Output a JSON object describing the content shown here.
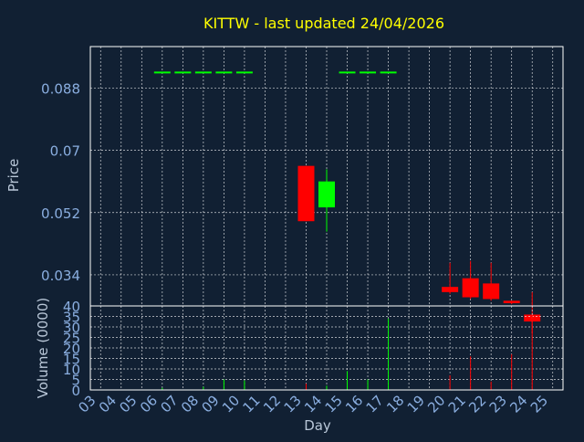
{
  "title": "KITTW - last updated 24/04/2026",
  "colors": {
    "background": "#112033",
    "frame": "#ffffff",
    "grid": "#ffffff",
    "title": "#ffff00",
    "axis_text": "#8aaee0",
    "label_text": "#b9c7d8",
    "up": "#00ff00",
    "down": "#ff0000",
    "flat": "#00ff00"
  },
  "chart_data": [
    {
      "type": "candlestick",
      "title": "KITTW - last updated 24/04/2026",
      "ylabel": "Price",
      "ylim": [
        0.025,
        0.1
      ],
      "y_ticks": [
        0.034,
        0.052,
        0.07,
        0.088
      ],
      "y_tick_labels": [
        "0.034",
        "0.052",
        "0.07",
        "0.088"
      ],
      "x_ticks": [
        "03",
        "04",
        "05",
        "06",
        "07",
        "08",
        "09",
        "10",
        "11",
        "12",
        "13",
        "14",
        "15",
        "16",
        "17",
        "18",
        "19",
        "20",
        "21",
        "22",
        "23",
        "24",
        "25"
      ],
      "grid": true,
      "candles": [
        {
          "day": "06",
          "open": 0.0925,
          "high": 0.0925,
          "low": 0.0925,
          "close": 0.0925
        },
        {
          "day": "07",
          "open": 0.0925,
          "high": 0.0925,
          "low": 0.0925,
          "close": 0.0925
        },
        {
          "day": "08",
          "open": 0.0925,
          "high": 0.0925,
          "low": 0.0925,
          "close": 0.0925
        },
        {
          "day": "09",
          "open": 0.0925,
          "high": 0.0925,
          "low": 0.0925,
          "close": 0.0925
        },
        {
          "day": "10",
          "open": 0.0925,
          "high": 0.0925,
          "low": 0.0925,
          "close": 0.0925
        },
        {
          "day": "13",
          "open": 0.0655,
          "high": 0.0655,
          "low": 0.0495,
          "close": 0.0495
        },
        {
          "day": "14",
          "open": 0.0535,
          "high": 0.0645,
          "low": 0.0465,
          "close": 0.061
        },
        {
          "day": "15",
          "open": 0.0925,
          "high": 0.0925,
          "low": 0.0925,
          "close": 0.0925
        },
        {
          "day": "16",
          "open": 0.0925,
          "high": 0.0925,
          "low": 0.0925,
          "close": 0.0925
        },
        {
          "day": "17",
          "open": 0.0925,
          "high": 0.0925,
          "low": 0.0925,
          "close": 0.0925
        },
        {
          "day": "20",
          "open": 0.0305,
          "high": 0.0375,
          "low": 0.0285,
          "close": 0.029
        },
        {
          "day": "21",
          "open": 0.033,
          "high": 0.038,
          "low": 0.027,
          "close": 0.0275
        },
        {
          "day": "22",
          "open": 0.0315,
          "high": 0.0375,
          "low": 0.0265,
          "close": 0.027
        },
        {
          "day": "23",
          "open": 0.0265,
          "high": 0.0265,
          "low": 0.0255,
          "close": 0.0258
        },
        {
          "day": "24",
          "open": 0.0225,
          "high": 0.029,
          "low": 0.017,
          "close": 0.0205
        }
      ]
    },
    {
      "type": "bar",
      "ylabel": "Volume (0000)",
      "xlabel": "Day",
      "ylim": [
        0,
        40
      ],
      "y_ticks": [
        0,
        5,
        10,
        15,
        20,
        25,
        30,
        35,
        40
      ],
      "y_tick_labels": [
        "0",
        "5",
        "10",
        "15",
        "20",
        "25",
        "30",
        "35",
        "40"
      ],
      "x_ticks": [
        "03",
        "04",
        "05",
        "06",
        "07",
        "08",
        "09",
        "10",
        "11",
        "12",
        "13",
        "14",
        "15",
        "16",
        "17",
        "18",
        "19",
        "20",
        "21",
        "22",
        "23",
        "24",
        "25"
      ],
      "grid": true,
      "bars": [
        {
          "day": "06",
          "value": 1,
          "direction": "up"
        },
        {
          "day": "08",
          "value": 1.5,
          "direction": "up"
        },
        {
          "day": "09",
          "value": 5,
          "direction": "up"
        },
        {
          "day": "10",
          "value": 4.5,
          "direction": "up"
        },
        {
          "day": "13",
          "value": 3,
          "direction": "down"
        },
        {
          "day": "14",
          "value": 2,
          "direction": "up"
        },
        {
          "day": "15",
          "value": 9,
          "direction": "up"
        },
        {
          "day": "16",
          "value": 5,
          "direction": "up"
        },
        {
          "day": "17",
          "value": 34,
          "direction": "up"
        },
        {
          "day": "20",
          "value": 7,
          "direction": "down"
        },
        {
          "day": "21",
          "value": 16,
          "direction": "down"
        },
        {
          "day": "22",
          "value": 4,
          "direction": "down"
        },
        {
          "day": "23",
          "value": 17,
          "direction": "down"
        },
        {
          "day": "24",
          "value": 35.5,
          "direction": "down"
        }
      ]
    }
  ]
}
